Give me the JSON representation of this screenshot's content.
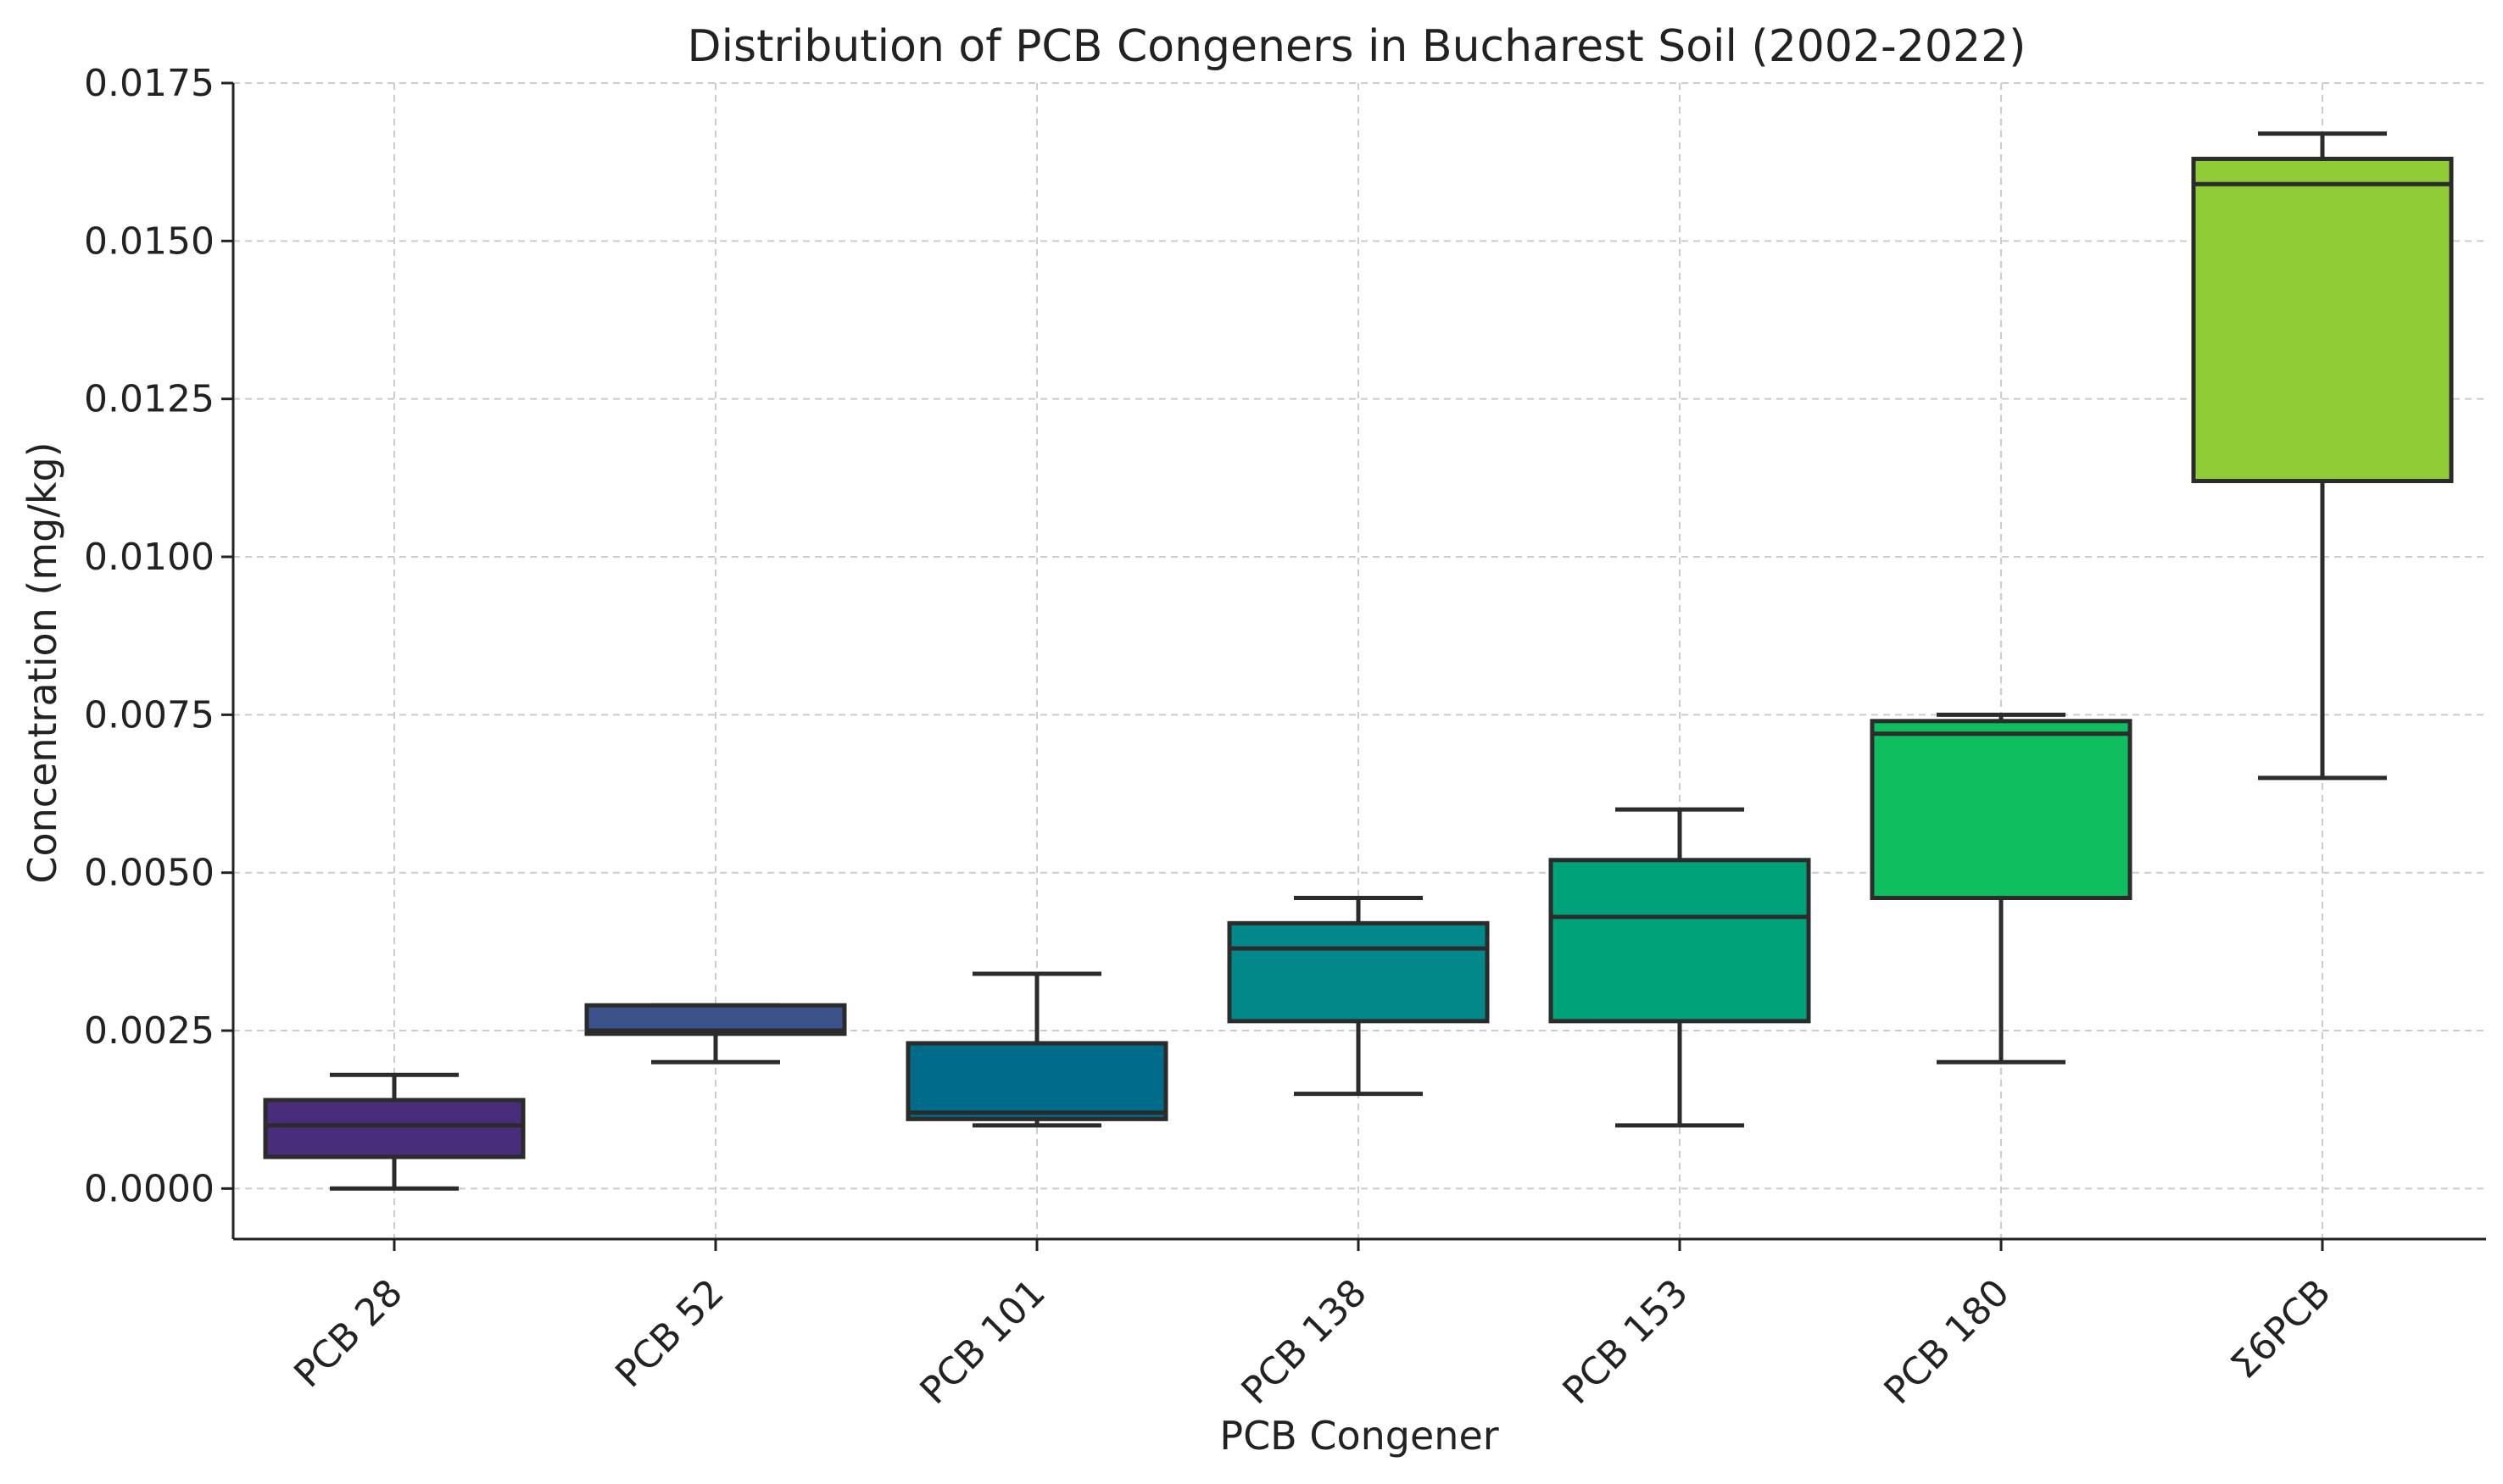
{
  "chart_data": {
    "type": "box",
    "title": "Distribution of PCB Congeners in Bucharest Soil (2002-2022)",
    "xlabel": "PCB Congener",
    "ylabel": "Concentration (mg/kg)",
    "ylim": [
      -0.0008,
      0.0175
    ],
    "yticks": [
      0.0,
      0.0025,
      0.005,
      0.0075,
      0.01,
      0.0125,
      0.015,
      0.0175
    ],
    "ytick_labels": [
      "0.0000",
      "0.0025",
      "0.0050",
      "0.0075",
      "0.0100",
      "0.0125",
      "0.0150",
      "0.0175"
    ],
    "grid": true,
    "categories": [
      "PCB 28",
      "PCB 52",
      "PCB 101",
      "PCB 138",
      "PCB 153",
      "PCB 180",
      "Σ6PCB"
    ],
    "series": [
      {
        "name": "PCB 28",
        "min": 0.0,
        "q1": 0.0005,
        "median": 0.001,
        "q3": 0.0014,
        "max": 0.0018,
        "color": "#472d7b"
      },
      {
        "name": "PCB 52",
        "min": 0.002,
        "q1": 0.00245,
        "median": 0.0025,
        "q3": 0.0029,
        "max": 0.0029,
        "color": "#3b528b"
      },
      {
        "name": "PCB 101",
        "min": 0.001,
        "q1": 0.0011,
        "median": 0.0012,
        "q3": 0.0023,
        "max": 0.0034,
        "color": "#006b8a"
      },
      {
        "name": "PCB 138",
        "min": 0.0015,
        "q1": 0.00265,
        "median": 0.0038,
        "q3": 0.0042,
        "max": 0.0046,
        "color": "#00888a"
      },
      {
        "name": "PCB 153",
        "min": 0.001,
        "q1": 0.00265,
        "median": 0.0043,
        "q3": 0.0052,
        "max": 0.006,
        "color": "#00a27a"
      },
      {
        "name": "PCB 180",
        "min": 0.002,
        "q1": 0.0046,
        "median": 0.0072,
        "q3": 0.0074,
        "max": 0.0075,
        "color": "#0fbf5f"
      },
      {
        "name": "Σ6PCB",
        "min": 0.0065,
        "q1": 0.0112,
        "median": 0.0159,
        "q3": 0.0163,
        "max": 0.0167,
        "color": "#8fcc37"
      }
    ]
  }
}
